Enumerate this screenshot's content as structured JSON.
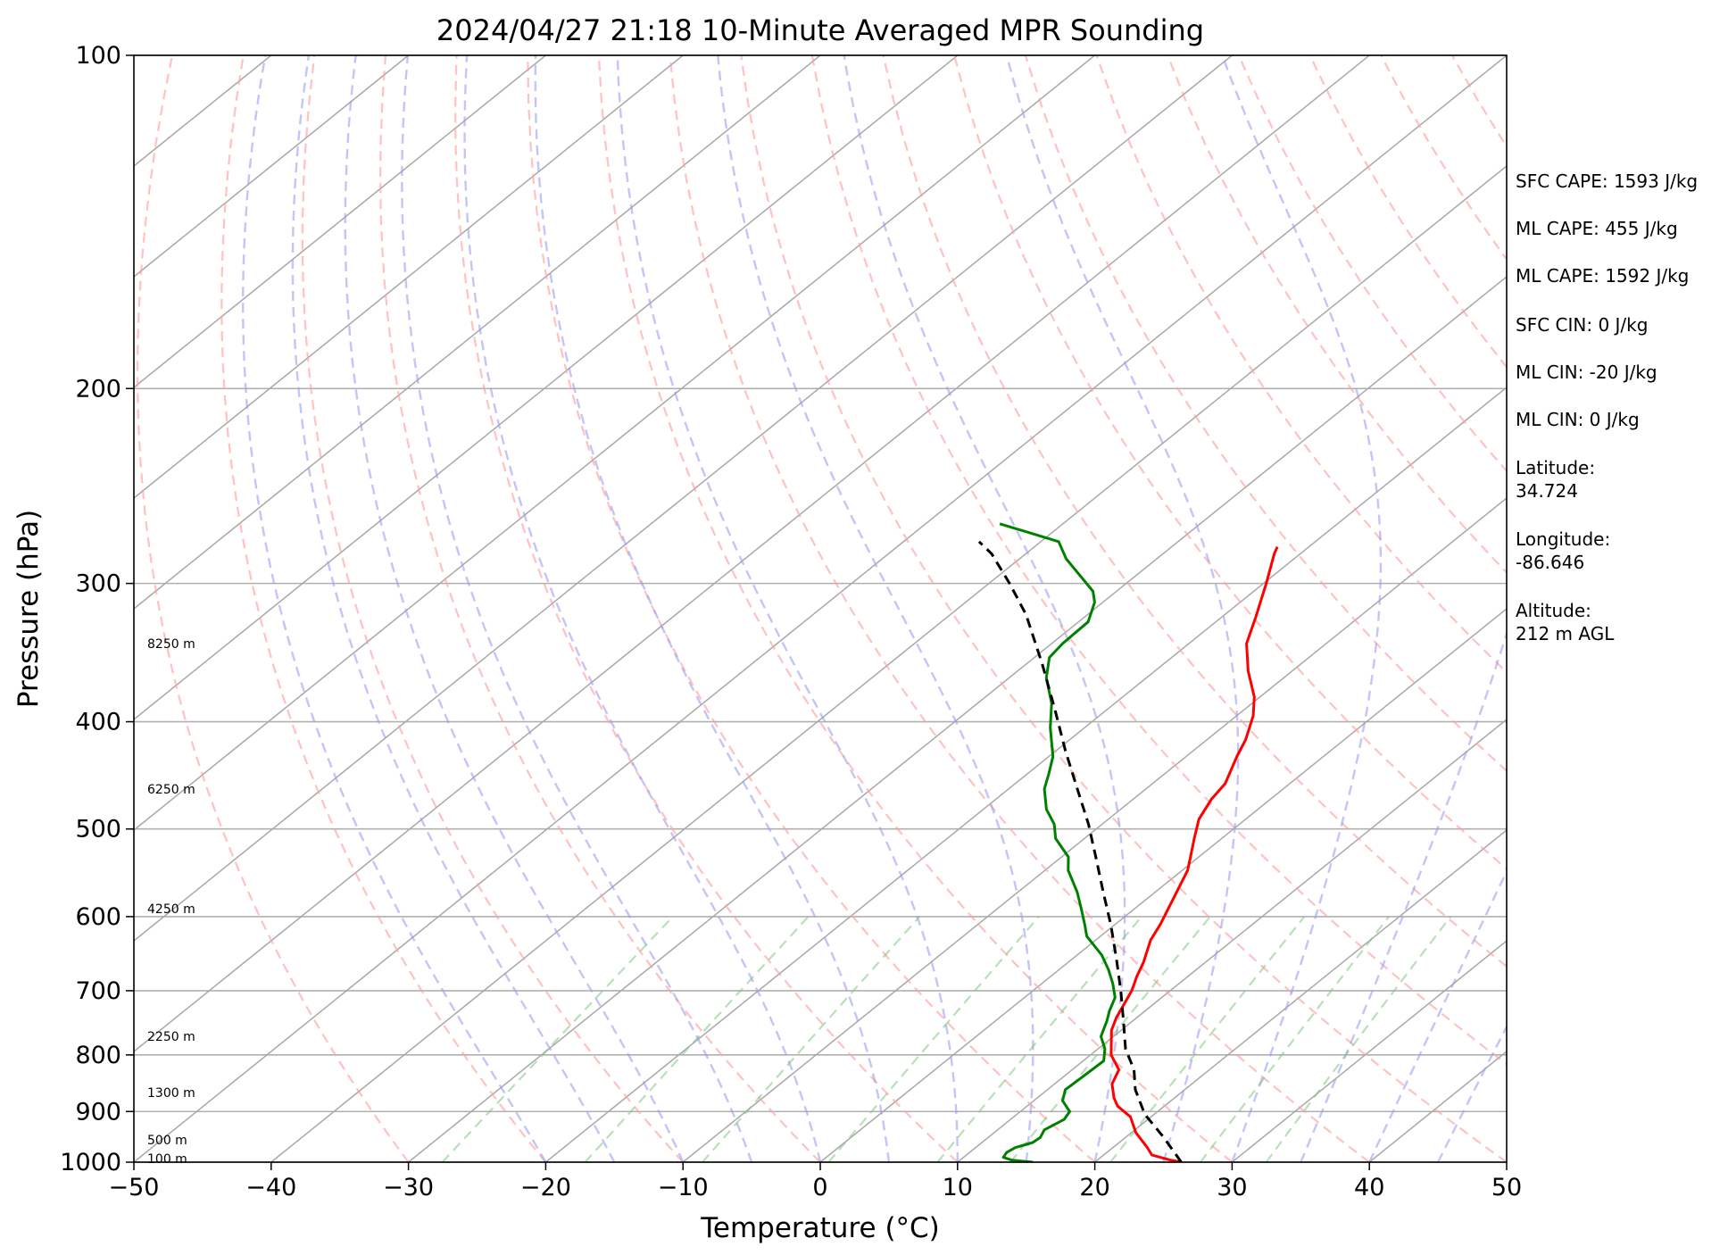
{
  "chart_data": {
    "type": "line",
    "title": "2024/04/27 21:18 10-Minute Averaged MPR Sounding",
    "xlabel": "Temperature (°C)",
    "ylabel": "Pressure (hPa)",
    "xlim": [
      -50,
      50
    ],
    "ylim": [
      1000,
      100
    ],
    "y_scale": "log",
    "skew": "skew-T log-P",
    "x_ticks": [
      "−50",
      "−40",
      "−30",
      "−20",
      "−10",
      "0",
      "10",
      "20",
      "30",
      "40",
      "50"
    ],
    "y_ticks": [
      "100",
      "200",
      "300",
      "400",
      "500",
      "600",
      "700",
      "800",
      "900",
      "1000"
    ],
    "grid": "horizontal at pressure ticks",
    "height_labels": [
      {
        "label": "100 m",
        "p": 993
      },
      {
        "label": "500 m",
        "p": 955
      },
      {
        "label": "1300 m",
        "p": 865
      },
      {
        "label": "2250 m",
        "p": 770
      },
      {
        "label": "4250 m",
        "p": 590
      },
      {
        "label": "6250 m",
        "p": 460
      },
      {
        "label": "8250 m",
        "p": 340
      }
    ],
    "series": [
      {
        "role": "temperature",
        "color": "#ff0000",
        "style": "solid",
        "points": [
          [
            26.3,
            1000
          ],
          [
            25.2,
            995
          ],
          [
            23.5,
            985
          ],
          [
            22.5,
            970
          ],
          [
            20.3,
            940
          ],
          [
            18.5,
            910
          ],
          [
            16.6,
            890
          ],
          [
            15.6,
            875
          ],
          [
            14.2,
            850
          ],
          [
            13.4,
            825
          ],
          [
            11.5,
            800
          ],
          [
            9.3,
            760
          ],
          [
            8.5,
            740
          ],
          [
            7.2,
            700
          ],
          [
            6.3,
            680
          ],
          [
            5.5,
            660
          ],
          [
            4.0,
            630
          ],
          [
            3.3,
            610
          ],
          [
            2.0,
            580
          ],
          [
            0.4,
            545
          ],
          [
            -0.6,
            530
          ],
          [
            -2.0,
            510
          ],
          [
            -3.4,
            490
          ],
          [
            -4.3,
            470
          ],
          [
            -4.7,
            455
          ],
          [
            -6.3,
            430
          ],
          [
            -7.2,
            415
          ],
          [
            -8.8,
            395
          ],
          [
            -10.4,
            380
          ],
          [
            -13.2,
            360
          ],
          [
            -15.8,
            340
          ],
          [
            -17.5,
            322
          ],
          [
            -19.8,
            300
          ],
          [
            -21.9,
            282
          ],
          [
            -22.3,
            278
          ]
        ]
      },
      {
        "role": "dewpoint",
        "color": "#008000",
        "style": "solid",
        "points": [
          [
            15.5,
            1000
          ],
          [
            13.8,
            996
          ],
          [
            12.9,
            990
          ],
          [
            12.7,
            980
          ],
          [
            12.9,
            970
          ],
          [
            13.7,
            960
          ],
          [
            13.8,
            950
          ],
          [
            13.4,
            935
          ],
          [
            13.9,
            915
          ],
          [
            13.6,
            900
          ],
          [
            12.1,
            880
          ],
          [
            11.3,
            860
          ],
          [
            11.4,
            835
          ],
          [
            11.5,
            810
          ],
          [
            10.5,
            790
          ],
          [
            9.1,
            770
          ],
          [
            8.1,
            745
          ],
          [
            7.4,
            730
          ],
          [
            6.6,
            710
          ],
          [
            5.2,
            690
          ],
          [
            3.6,
            670
          ],
          [
            1.8,
            650
          ],
          [
            -1.0,
            625
          ],
          [
            -2.2,
            610
          ],
          [
            -3.9,
            590
          ],
          [
            -5.7,
            570
          ],
          [
            -8.3,
            545
          ],
          [
            -9.5,
            530
          ],
          [
            -12.1,
            510
          ],
          [
            -13.5,
            495
          ],
          [
            -15.4,
            480
          ],
          [
            -17.4,
            460
          ],
          [
            -18.5,
            445
          ],
          [
            -19.7,
            430
          ],
          [
            -22.5,
            405
          ],
          [
            -24.6,
            385
          ],
          [
            -27.3,
            365
          ],
          [
            -28.9,
            350
          ],
          [
            -29.2,
            340
          ],
          [
            -29.3,
            325
          ],
          [
            -30.6,
            312
          ],
          [
            -31.7,
            305
          ],
          [
            -36.6,
            285
          ],
          [
            -38.7,
            275
          ],
          [
            -44.6,
            265
          ]
        ]
      },
      {
        "role": "parcel path",
        "color": "#000000",
        "style": "dashed",
        "points": [
          [
            26.3,
            1000
          ],
          [
            22.8,
            950
          ],
          [
            19.3,
            905
          ],
          [
            16.4,
            860
          ],
          [
            14.5,
            825
          ],
          [
            12.0,
            790
          ],
          [
            9.3,
            745
          ],
          [
            6.4,
            700
          ],
          [
            3.2,
            655
          ],
          [
            -0.3,
            610
          ],
          [
            -3.8,
            570
          ],
          [
            -7.5,
            530
          ],
          [
            -11.0,
            495
          ],
          [
            -15.0,
            460
          ],
          [
            -19.3,
            425
          ],
          [
            -23.8,
            390
          ],
          [
            -28.8,
            355
          ],
          [
            -34.5,
            320
          ],
          [
            -38.5,
            300
          ],
          [
            -42.5,
            282
          ],
          [
            -44.5,
            275
          ]
        ]
      }
    ]
  },
  "info": {
    "sfc_cape": "SFC CAPE: 1593 J/kg",
    "ml_cape_1": "ML CAPE: 455 J/kg",
    "ml_cape_2": "ML CAPE: 1592 J/kg",
    "sfc_cin": "SFC CIN: 0 J/kg",
    "ml_cin_1": "ML CIN: -20 J/kg",
    "ml_cin_2": "ML CIN: 0 J/kg",
    "latitude_label": "Latitude:",
    "latitude_value": "34.724",
    "longitude_label": "Longitude:",
    "longitude_value": "-86.646",
    "altitude_label": "Altitude:",
    "altitude_value": "212 m AGL"
  }
}
